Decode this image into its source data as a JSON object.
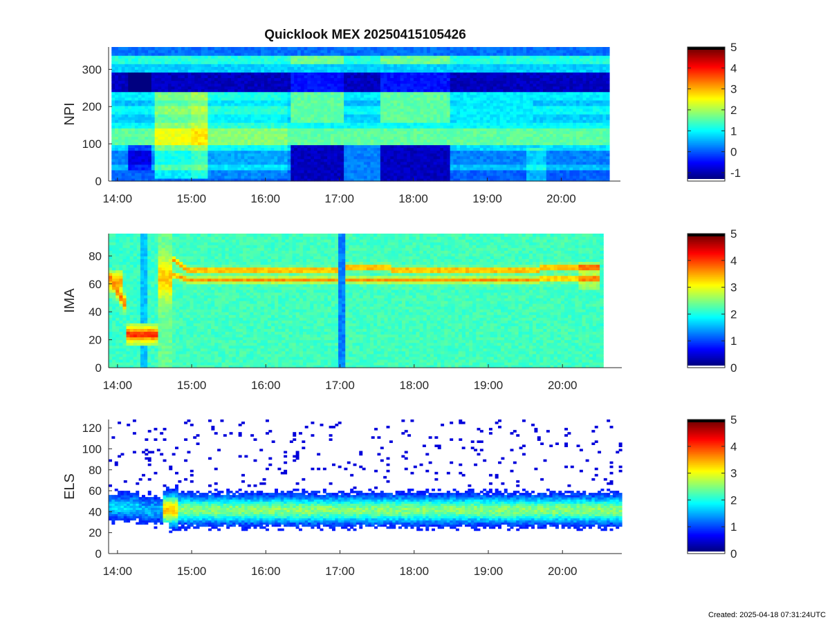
{
  "figure": {
    "title": "Quicklook MEX 20250415105426",
    "created": "Created: 2025-04-18 07:31:24UTC"
  },
  "chart_data": [
    {
      "type": "heatmap",
      "ylabel": "NPI",
      "ylim": [
        0,
        360
      ],
      "yticks": [
        0,
        100,
        200,
        300
      ],
      "xlim_hours": [
        13.88,
        20.8
      ],
      "data_x_range_hours": [
        13.92,
        20.65
      ],
      "xticks": [
        "14:00",
        "15:00",
        "16:00",
        "17:00",
        "18:00",
        "19:00",
        "20:00"
      ],
      "colorbar": {
        "min": -1.4,
        "max": 5,
        "ticks": [
          -1,
          0,
          1,
          2,
          3,
          4,
          5
        ]
      }
    },
    {
      "type": "heatmap",
      "ylabel": "IMA",
      "ylim": [
        0,
        96
      ],
      "yticks": [
        0,
        20,
        40,
        60,
        80
      ],
      "xlim_hours": [
        13.88,
        20.8
      ],
      "data_x_range_hours": [
        13.88,
        20.55
      ],
      "xticks": [
        "14:00",
        "15:00",
        "16:00",
        "17:00",
        "18:00",
        "19:00",
        "20:00"
      ],
      "colorbar": {
        "min": 0,
        "max": 5,
        "ticks": [
          0,
          1,
          2,
          3,
          4,
          5
        ]
      }
    },
    {
      "type": "heatmap",
      "ylabel": "ELS",
      "ylim": [
        0,
        128
      ],
      "yticks": [
        0,
        20,
        40,
        60,
        80,
        100,
        120
      ],
      "xlim_hours": [
        13.88,
        20.8
      ],
      "data_x_range_hours": [
        13.88,
        20.8
      ],
      "xticks": [
        "14:00",
        "15:00",
        "16:00",
        "17:00",
        "18:00",
        "19:00",
        "20:00"
      ],
      "colorbar": {
        "min": 0,
        "max": 5,
        "ticks": [
          0,
          1,
          2,
          3,
          4,
          5
        ]
      }
    }
  ]
}
